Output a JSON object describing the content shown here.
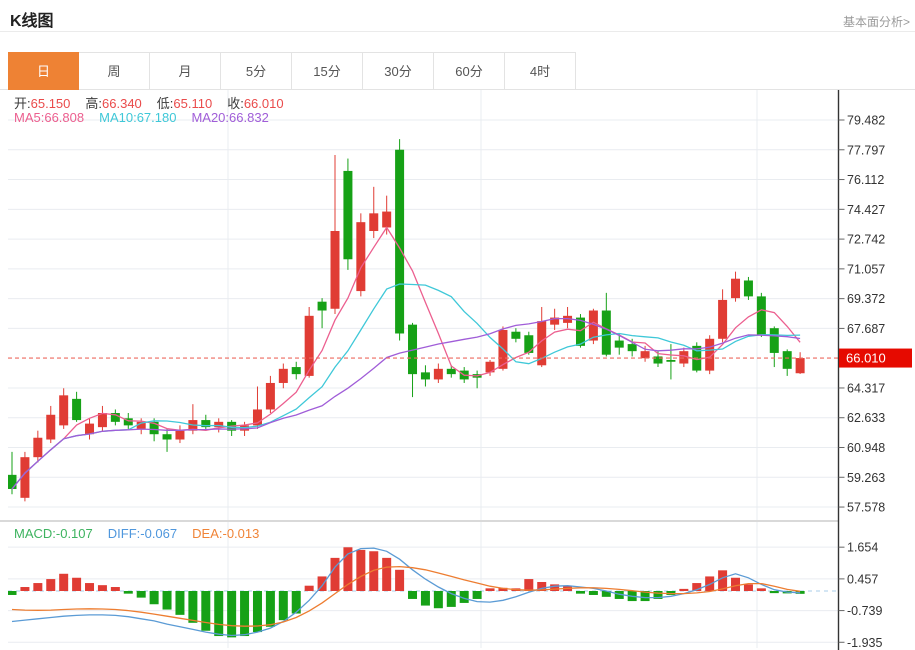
{
  "header": {
    "title": "K线图",
    "link_label": "基本面分析>"
  },
  "tabs": {
    "items": [
      {
        "label": "日",
        "name": "tab-day",
        "active": true
      },
      {
        "label": "周",
        "name": "tab-week",
        "active": false
      },
      {
        "label": "月",
        "name": "tab-month",
        "active": false
      },
      {
        "label": "5分",
        "name": "tab-5min",
        "active": false
      },
      {
        "label": "15分",
        "name": "tab-15min",
        "active": false
      },
      {
        "label": "30分",
        "name": "tab-30min",
        "active": false
      },
      {
        "label": "60分",
        "name": "tab-60min",
        "active": false
      },
      {
        "label": "4时",
        "name": "tab-4h",
        "active": false
      }
    ]
  },
  "legend": {
    "ohlc": [
      {
        "name": "ohlc-open",
        "label": "开:",
        "value": "65.150"
      },
      {
        "name": "ohlc-high",
        "label": "高:",
        "value": "66.340"
      },
      {
        "name": "ohlc-low",
        "label": "低:",
        "value": "65.110"
      },
      {
        "name": "ohlc-close",
        "label": "收:",
        "value": "66.010"
      }
    ],
    "ma": [
      {
        "name": "ma5-value",
        "label": "MA5:",
        "value": "66.808",
        "color": "#ec5f8f"
      },
      {
        "name": "ma10-value",
        "label": "MA10:",
        "value": "67.180",
        "color": "#3fc8d8"
      },
      {
        "name": "ma20-value",
        "label": "MA20:",
        "value": "66.832",
        "color": "#a05dd8"
      }
    ],
    "macd": [
      {
        "name": "macd-value",
        "label": "MACD:",
        "value": "-0.107",
        "color": "#3db35f"
      },
      {
        "name": "diff-value",
        "label": "DIFF:",
        "value": "-0.067",
        "color": "#4f97dd"
      },
      {
        "name": "dea-value",
        "label": "DEA:",
        "value": "-0.013",
        "color": "#f08437"
      }
    ]
  },
  "colors": {
    "up": "#e03c34",
    "down": "#16a116",
    "ma5": "#ec5f8f",
    "ma10": "#3fc8d8",
    "ma20": "#a05dd8",
    "diff": "#5b9bd5",
    "dea": "#ed7d31",
    "ohlc_value": "#ea4b4b",
    "price_line": "#ee6a5f",
    "price_tag_bg": "#e60a00",
    "price_tag_text": "#ffffff",
    "tab_active_bg": "#ee8234",
    "axis": "#333333",
    "grid": "#e9ecf0",
    "divider": "#d9d9d9",
    "zero_line": "#a9cdea"
  },
  "chart_data": {
    "type": "candlestick+macd",
    "title": "K线图",
    "price_axis_ticks": [
      79.482,
      77.797,
      76.112,
      74.427,
      72.742,
      71.057,
      69.372,
      67.687,
      64.317,
      62.633,
      60.948,
      59.263,
      57.578
    ],
    "price_axis_range": [
      57.2,
      81.2
    ],
    "current_price": 66.01,
    "current_price_label": "66.010",
    "macd_axis_ticks": [
      1.654,
      0.457,
      -0.739,
      -1.935
    ],
    "candles_ohlc": [
      [
        59.4,
        60.7,
        58.3,
        58.6
      ],
      [
        58.1,
        60.7,
        57.9,
        60.4
      ],
      [
        60.4,
        61.9,
        60.1,
        61.5
      ],
      [
        61.4,
        63.3,
        61.2,
        62.8
      ],
      [
        62.2,
        64.3,
        62.0,
        63.9
      ],
      [
        63.7,
        64.1,
        62.4,
        62.5
      ],
      [
        61.7,
        62.6,
        61.4,
        62.3
      ],
      [
        62.1,
        63.3,
        61.9,
        62.9
      ],
      [
        62.9,
        63.1,
        62.2,
        62.4
      ],
      [
        62.6,
        62.9,
        62.0,
        62.2
      ],
      [
        62.0,
        62.6,
        61.7,
        62.4
      ],
      [
        62.4,
        62.6,
        61.3,
        61.7
      ],
      [
        61.7,
        62.0,
        60.7,
        61.4
      ],
      [
        61.4,
        62.2,
        61.2,
        61.9
      ],
      [
        61.9,
        63.4,
        61.7,
        62.5
      ],
      [
        62.5,
        62.8,
        61.9,
        62.1
      ],
      [
        62.1,
        62.6,
        61.8,
        62.4
      ],
      [
        62.4,
        62.5,
        61.6,
        61.9
      ],
      [
        61.9,
        62.4,
        61.6,
        62.2
      ],
      [
        62.2,
        64.4,
        62.0,
        63.1
      ],
      [
        63.1,
        65.0,
        62.9,
        64.6
      ],
      [
        64.6,
        65.7,
        64.3,
        65.4
      ],
      [
        65.5,
        65.8,
        64.8,
        65.1
      ],
      [
        65.0,
        68.9,
        64.9,
        68.4
      ],
      [
        69.2,
        69.4,
        67.7,
        68.7
      ],
      [
        68.8,
        77.5,
        68.5,
        73.2
      ],
      [
        76.6,
        77.3,
        71.0,
        71.6
      ],
      [
        69.8,
        74.2,
        69.5,
        73.7
      ],
      [
        73.2,
        75.7,
        72.8,
        74.2
      ],
      [
        73.4,
        75.2,
        73.0,
        74.3
      ],
      [
        77.8,
        78.4,
        67.0,
        67.4
      ],
      [
        67.9,
        68.0,
        63.8,
        65.1
      ],
      [
        65.2,
        65.6,
        64.4,
        64.8
      ],
      [
        64.8,
        65.7,
        64.6,
        65.4
      ],
      [
        65.4,
        65.6,
        64.9,
        65.1
      ],
      [
        65.3,
        65.5,
        64.6,
        64.8
      ],
      [
        65.1,
        65.3,
        64.3,
        64.9
      ],
      [
        65.2,
        65.9,
        65.0,
        65.8
      ],
      [
        65.4,
        67.8,
        65.3,
        67.6
      ],
      [
        67.5,
        67.7,
        66.9,
        67.1
      ],
      [
        67.3,
        67.5,
        66.2,
        66.3
      ],
      [
        65.6,
        68.9,
        65.5,
        68.1
      ],
      [
        67.9,
        68.8,
        67.6,
        68.3
      ],
      [
        68.0,
        68.9,
        67.7,
        68.4
      ],
      [
        68.3,
        68.5,
        66.6,
        66.7
      ],
      [
        67.0,
        68.8,
        66.8,
        68.7
      ],
      [
        68.7,
        69.7,
        66.1,
        66.2
      ],
      [
        67.0,
        67.4,
        66.2,
        66.6
      ],
      [
        66.8,
        67.1,
        66.1,
        66.4
      ],
      [
        66.0,
        66.7,
        65.8,
        66.4
      ],
      [
        66.1,
        66.4,
        65.5,
        65.7
      ],
      [
        65.9,
        66.8,
        64.8,
        65.8
      ],
      [
        65.7,
        66.6,
        65.5,
        66.4
      ],
      [
        66.7,
        66.9,
        65.2,
        65.3
      ],
      [
        65.3,
        67.3,
        65.1,
        67.1
      ],
      [
        67.1,
        69.9,
        66.9,
        69.3
      ],
      [
        69.4,
        70.9,
        69.2,
        70.5
      ],
      [
        70.4,
        70.6,
        69.3,
        69.5
      ],
      [
        69.5,
        69.7,
        67.2,
        67.3
      ],
      [
        67.7,
        67.8,
        65.5,
        66.3
      ],
      [
        66.4,
        66.5,
        65.0,
        65.4
      ],
      [
        65.15,
        66.34,
        65.11,
        66.01
      ]
    ],
    "ma_periods": [
      5,
      10,
      20
    ],
    "macd": {
      "histogram": [
        -0.15,
        0.15,
        0.3,
        0.45,
        0.65,
        0.5,
        0.3,
        0.22,
        0.15,
        -0.1,
        -0.25,
        -0.5,
        -0.7,
        -0.9,
        -1.2,
        -1.5,
        -1.7,
        -1.75,
        -1.7,
        -1.55,
        -1.35,
        -1.1,
        -0.85,
        0.2,
        0.55,
        1.25,
        1.65,
        1.55,
        1.5,
        1.25,
        0.8,
        -0.3,
        -0.55,
        -0.65,
        -0.6,
        -0.45,
        -0.3,
        0.1,
        0.12,
        0.1,
        0.45,
        0.34,
        0.25,
        0.2,
        -0.1,
        -0.15,
        -0.22,
        -0.3,
        -0.38,
        -0.38,
        -0.3,
        -0.15,
        0.08,
        0.3,
        0.55,
        0.78,
        0.5,
        0.25,
        0.1,
        -0.08,
        -0.09,
        -0.107
      ],
      "diff": [
        -1.15,
        -1.1,
        -1.05,
        -1.0,
        -0.95,
        -0.92,
        -0.9,
        -0.9,
        -0.92,
        -0.97,
        -1.05,
        -1.13,
        -1.25,
        -1.35,
        -1.45,
        -1.55,
        -1.63,
        -1.68,
        -1.65,
        -1.55,
        -1.4,
        -1.15,
        -0.8,
        -0.35,
        0.2,
        0.9,
        1.4,
        1.6,
        1.62,
        1.5,
        1.2,
        0.8,
        0.45,
        0.15,
        -0.1,
        -0.28,
        -0.4,
        -0.42,
        -0.35,
        -0.22,
        -0.05,
        0.1,
        0.18,
        0.2,
        0.15,
        0.1,
        0.0,
        -0.12,
        -0.2,
        -0.25,
        -0.25,
        -0.2,
        -0.1,
        0.05,
        0.25,
        0.5,
        0.65,
        0.5,
        0.25,
        0.05,
        -0.04,
        -0.067
      ],
      "dea": [
        -0.7,
        -0.72,
        -0.73,
        -0.72,
        -0.7,
        -0.68,
        -0.67,
        -0.68,
        -0.7,
        -0.74,
        -0.8,
        -0.87,
        -0.95,
        -1.03,
        -1.11,
        -1.19,
        -1.26,
        -1.31,
        -1.33,
        -1.32,
        -1.27,
        -1.17,
        -1.0,
        -0.75,
        -0.45,
        -0.1,
        0.25,
        0.55,
        0.78,
        0.9,
        0.92,
        0.88,
        0.8,
        0.68,
        0.55,
        0.42,
        0.3,
        0.18,
        0.1,
        0.05,
        0.03,
        0.04,
        0.07,
        0.1,
        0.12,
        0.12,
        0.1,
        0.06,
        0.01,
        -0.04,
        -0.08,
        -0.1,
        -0.1,
        -0.07,
        -0.02,
        0.08,
        0.2,
        0.28,
        0.28,
        0.18,
        0.06,
        -0.013
      ]
    }
  }
}
